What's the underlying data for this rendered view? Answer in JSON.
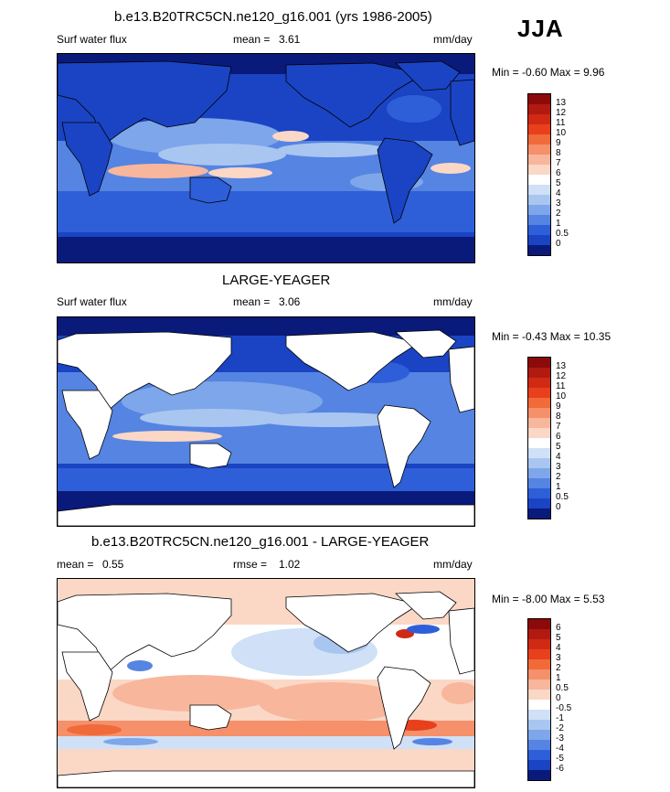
{
  "season": "JJA",
  "panels": [
    {
      "id": "p1",
      "title": "b.e13.B20TRC5CN.ne120_g16.001 (yrs 1986-2005)",
      "left_label": "Surf water flux",
      "stat1_label": "mean =",
      "stat1_value": "3.61",
      "stat2_label": "",
      "stat2_value": "",
      "units": "mm/day",
      "min_label": "Min =",
      "min_value": "-0.60",
      "max_label": "Max =",
      "max_value": "9.96",
      "land_masked": false
    },
    {
      "id": "p2",
      "title": "LARGE-YEAGER",
      "left_label": "Surf water flux",
      "stat1_label": "mean =",
      "stat1_value": "3.06",
      "stat2_label": "",
      "stat2_value": "",
      "units": "mm/day",
      "min_label": "Min =",
      "min_value": "-0.43",
      "max_label": "Max =",
      "max_value": "10.35",
      "land_masked": true
    },
    {
      "id": "p3",
      "title": "b.e13.B20TRC5CN.ne120_g16.001 - LARGE-YEAGER",
      "left_label": "",
      "stat1_label": "mean =",
      "stat1_value": "0.55",
      "stat2_label": "rmse =",
      "stat2_value": "1.02",
      "units": "mm/day",
      "min_label": "Min =",
      "min_value": "-8.00",
      "max_label": "Max =",
      "max_value": "5.53",
      "land_masked": true
    }
  ],
  "colorbar_field": {
    "labels": [
      "13",
      "12",
      "11",
      "10",
      "9",
      "8",
      "7",
      "6",
      "5",
      "4",
      "3",
      "2",
      "1",
      "0.5",
      "0"
    ],
    "colors": [
      "#8c0a0a",
      "#b01a10",
      "#d02a14",
      "#e8401c",
      "#f06a3a",
      "#f5906a",
      "#f8b69c",
      "#fbd7c6",
      "#ffffff",
      "#cfe0f7",
      "#a9c6f1",
      "#7ea6ea",
      "#5584e2",
      "#2e5fd8",
      "#1a44c4",
      "#0a1a7a"
    ]
  },
  "colorbar_diff": {
    "labels": [
      "6",
      "5",
      "4",
      "3",
      "2",
      "1",
      "0.5",
      "0",
      "-0.5",
      "-1",
      "-2",
      "-3",
      "-4",
      "-5",
      "-6"
    ],
    "colors": [
      "#8c0a0a",
      "#b01a10",
      "#d02a14",
      "#e8401c",
      "#f06a3a",
      "#f5906a",
      "#f8b69c",
      "#fbd7c6",
      "#ffffff",
      "#cfe0f7",
      "#a9c6f1",
      "#7ea6ea",
      "#5584e2",
      "#2e5fd8",
      "#1a44c4",
      "#0a1a7a"
    ]
  },
  "chart_data": [
    {
      "type": "heatmap",
      "title": "b.e13.B20TRC5CN.ne120_g16.001 (yrs 1986-2005)",
      "field": "Surf water flux",
      "units": "mm/day",
      "mean": 3.61,
      "min": -0.6,
      "max": 9.96,
      "contour_levels": [
        0,
        0.5,
        1,
        2,
        3,
        4,
        5,
        6,
        7,
        8,
        9,
        10,
        11,
        12,
        13
      ]
    },
    {
      "type": "heatmap",
      "title": "LARGE-YEAGER",
      "field": "Surf water flux",
      "units": "mm/day",
      "mean": 3.06,
      "min": -0.43,
      "max": 10.35,
      "contour_levels": [
        0,
        0.5,
        1,
        2,
        3,
        4,
        5,
        6,
        7,
        8,
        9,
        10,
        11,
        12,
        13
      ]
    },
    {
      "type": "heatmap",
      "title": "b.e13.B20TRC5CN.ne120_g16.001 - LARGE-YEAGER",
      "units": "mm/day",
      "mean": 0.55,
      "rmse": 1.02,
      "min": -8.0,
      "max": 5.53,
      "contour_levels": [
        -6,
        -5,
        -4,
        -3,
        -2,
        -1,
        -0.5,
        0,
        0.5,
        1,
        2,
        3,
        4,
        5,
        6
      ]
    }
  ]
}
